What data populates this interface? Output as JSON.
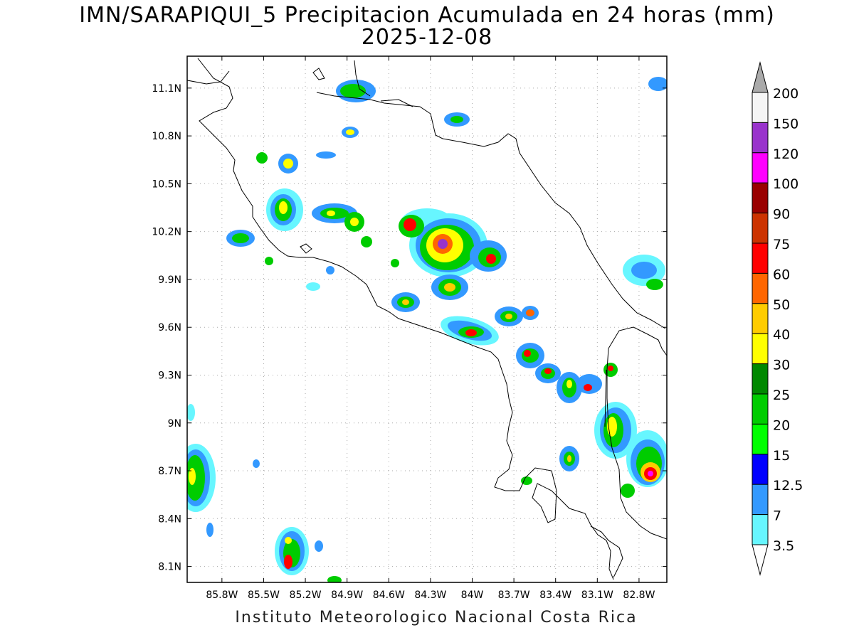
{
  "title": "IMN/SARAPIQUI_5 Precipitacion Acumulada en 24 horas (mm)",
  "subtitle": "2025-12-08",
  "footer": "Instituto Meteorologico Nacional Costa Rica",
  "map": {
    "lon_range": [
      -86.05,
      -82.6
    ],
    "lat_range": [
      8.0,
      11.3
    ],
    "x_ticks": [
      {
        "value": -85.8,
        "label": "85.8W"
      },
      {
        "value": -85.5,
        "label": "85.5W"
      },
      {
        "value": -85.2,
        "label": "85.2W"
      },
      {
        "value": -84.9,
        "label": "84.9W"
      },
      {
        "value": -84.6,
        "label": "84.6W"
      },
      {
        "value": -84.3,
        "label": "84.3W"
      },
      {
        "value": -84.0,
        "label": "84W"
      },
      {
        "value": -83.7,
        "label": "83.7W"
      },
      {
        "value": -83.4,
        "label": "83.4W"
      },
      {
        "value": -83.1,
        "label": "83.1W"
      },
      {
        "value": -82.8,
        "label": "82.8W"
      }
    ],
    "y_ticks": [
      {
        "value": 11.1,
        "label": "11.1N"
      },
      {
        "value": 10.8,
        "label": "10.8N"
      },
      {
        "value": 10.5,
        "label": "10.5N"
      },
      {
        "value": 10.2,
        "label": "10.2N"
      },
      {
        "value": 9.9,
        "label": "9.9N"
      },
      {
        "value": 9.6,
        "label": "9.6N"
      },
      {
        "value": 9.3,
        "label": "9.3N"
      },
      {
        "value": 9.0,
        "label": "9N"
      },
      {
        "value": 8.7,
        "label": "8.7N"
      },
      {
        "value": 8.4,
        "label": "8.4N"
      },
      {
        "value": 8.1,
        "label": "8.1N"
      }
    ],
    "grid": "dotted"
  },
  "colorbar": {
    "labels": [
      "200",
      "150",
      "120",
      "100",
      "90",
      "75",
      "60",
      "50",
      "40",
      "30",
      "25",
      "20",
      "15",
      "12.5",
      "7",
      "3.5"
    ],
    "colors": [
      "#ffffff",
      "#67f6ff",
      "#3399ff",
      "#0000ff",
      "#00ff00",
      "#00cc00",
      "#008800",
      "#ffff00",
      "#ffcc00",
      "#ff6600",
      "#ff0000",
      "#cc3300",
      "#990000",
      "#ff00ff",
      "#9933cc",
      "#f5f5f5",
      "#aaaaaa"
    ],
    "under_color": "#ffffff",
    "over_color": "#aaaaaa"
  }
}
